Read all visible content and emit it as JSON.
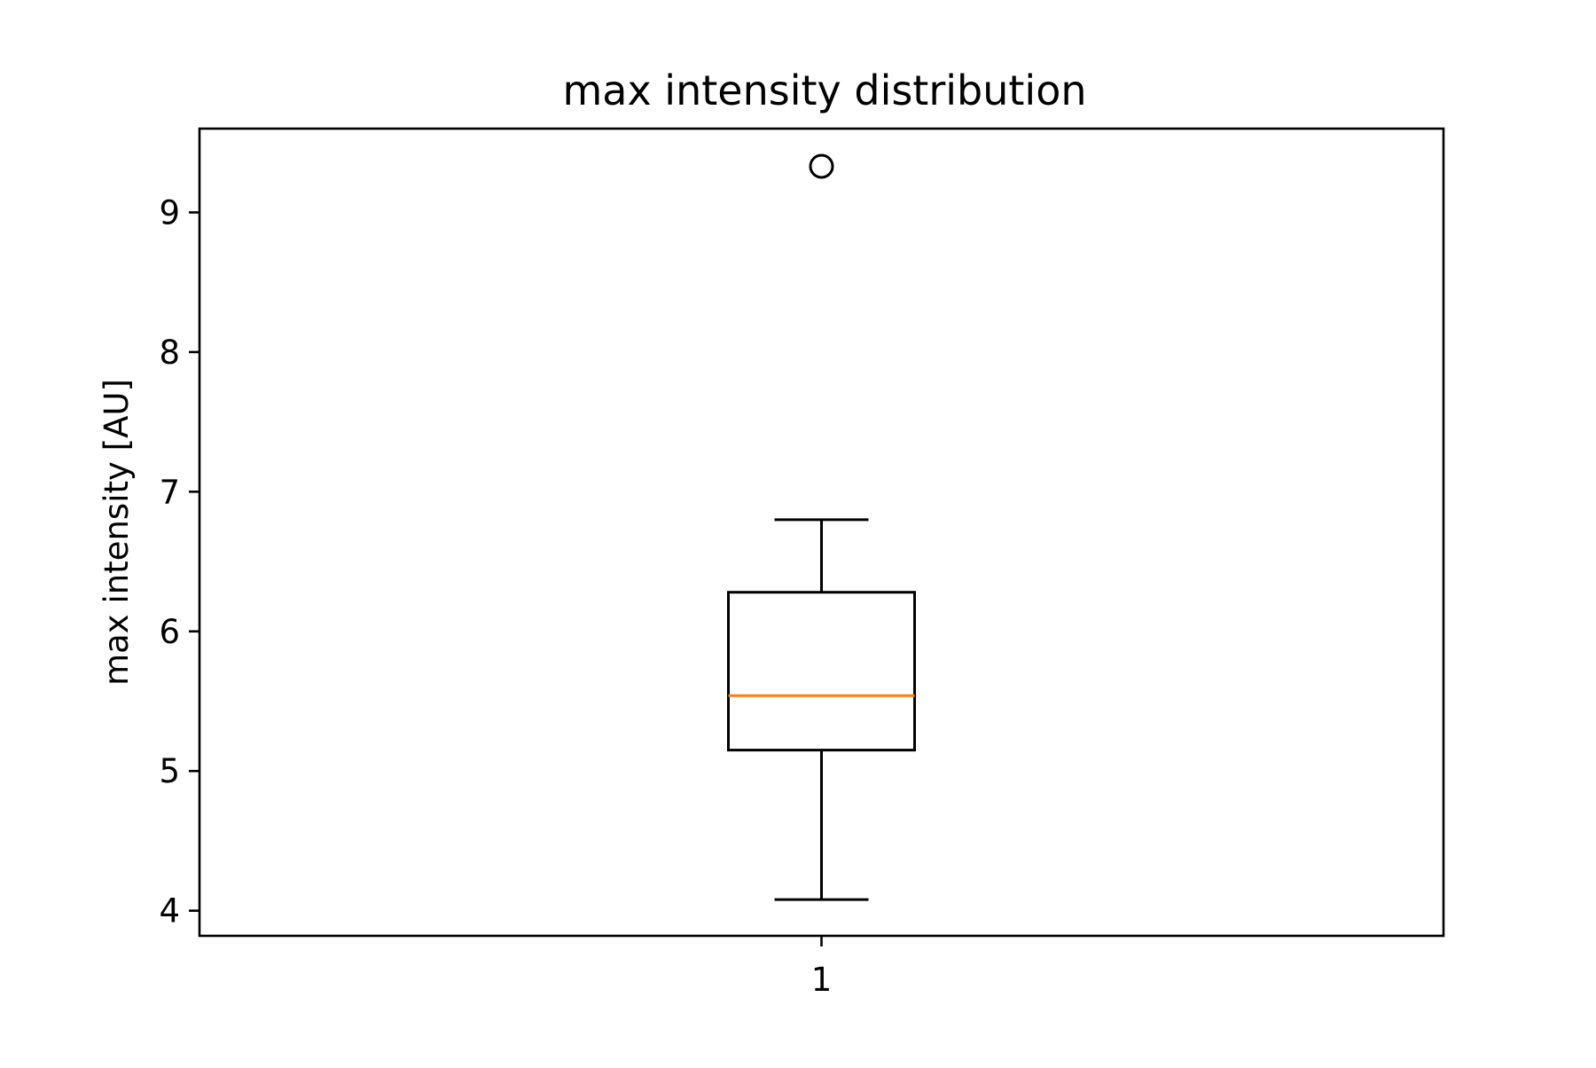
{
  "chart_data": {
    "type": "box",
    "title": "max intensity distribution",
    "xlabel": "",
    "ylabel": "max intensity [AU]",
    "categories": [
      "1"
    ],
    "ylim": [
      3.82,
      9.6
    ],
    "yticks": [
      4,
      5,
      6,
      7,
      8,
      9
    ],
    "grid": false,
    "legend": "none",
    "boxes": [
      {
        "category": "1",
        "whisker_low": 4.08,
        "q1": 5.15,
        "median": 5.54,
        "q3": 6.28,
        "whisker_high": 6.8,
        "outliers": [
          9.33
        ]
      }
    ],
    "colors": {
      "box": "#000000",
      "median": "#ff7f0e",
      "outlier": "#000000"
    }
  }
}
